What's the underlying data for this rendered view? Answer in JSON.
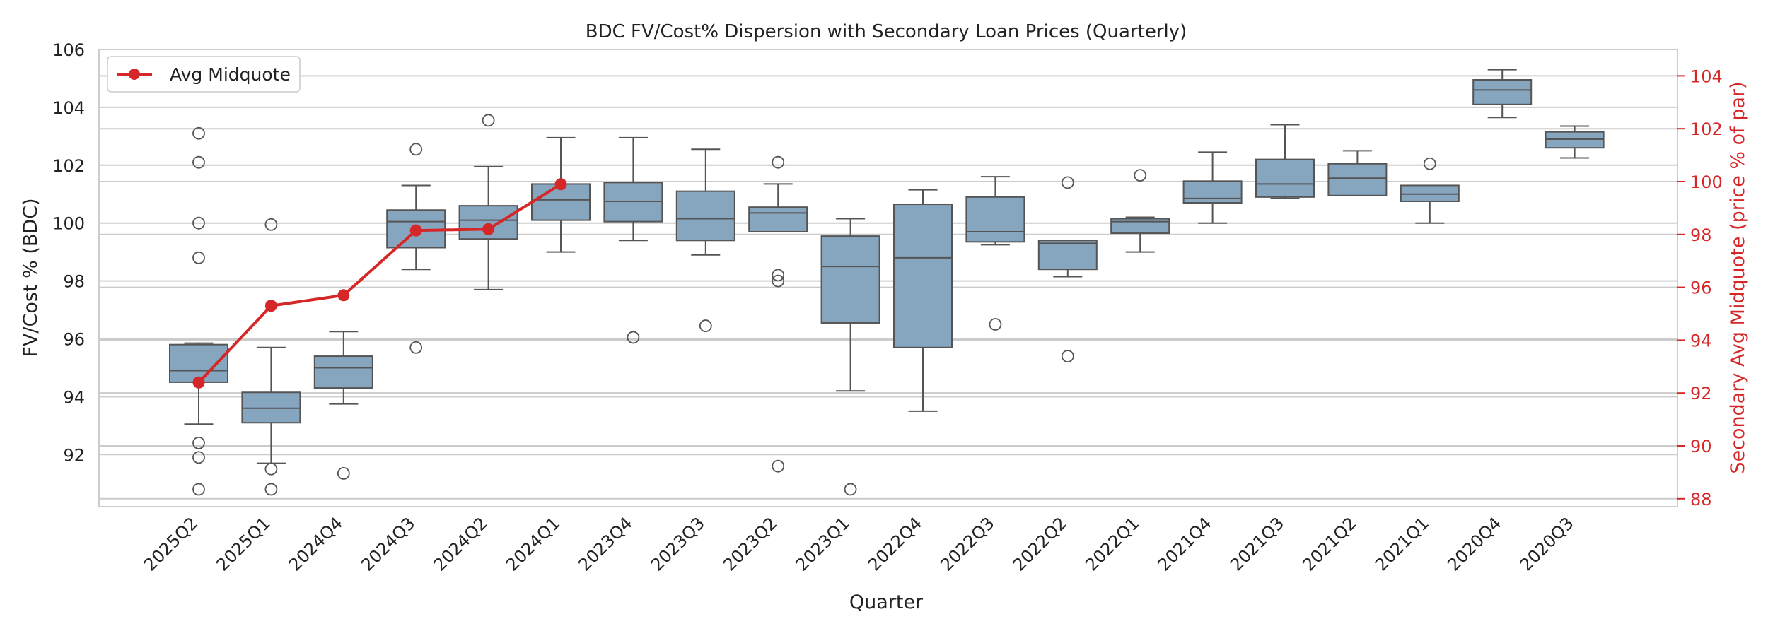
{
  "chart_data": {
    "type": "box",
    "title": "BDC FV/Cost% Dispersion with Secondary Loan Prices (Quarterly)",
    "xlabel": "Quarter",
    "ylabel": "FV/Cost % (BDC)",
    "ylabel_right": "Secondary Avg Midquote (price % of par)",
    "ylim": [
      90.2,
      106.0
    ],
    "ylim_right": [
      87.7,
      105.0
    ],
    "yticks": [
      92,
      94,
      96,
      98,
      100,
      102,
      104,
      106
    ],
    "yticks_right": [
      88,
      90,
      92,
      94,
      96,
      98,
      100,
      102,
      104
    ],
    "grid": true,
    "legend_position": "top-left",
    "legend": [
      "Avg Midquote"
    ],
    "colors": {
      "box": "#86a5be",
      "box_edge": "#555555",
      "line": "#d62728",
      "right_axis": "#d62728",
      "grid": "#cccccc"
    },
    "categories": [
      "2025Q2",
      "2025Q1",
      "2024Q4",
      "2024Q3",
      "2024Q2",
      "2024Q1",
      "2023Q4",
      "2023Q3",
      "2023Q2",
      "2023Q1",
      "2022Q4",
      "2022Q3",
      "2022Q2",
      "2022Q1",
      "2021Q4",
      "2021Q3",
      "2021Q2",
      "2021Q1",
      "2020Q4",
      "2020Q3"
    ],
    "boxes": [
      {
        "whislo": 93.05,
        "q1": 94.5,
        "med": 94.9,
        "q3": 95.8,
        "whishi": 95.85,
        "fliers": [
          103.1,
          102.1,
          100.0,
          98.8,
          92.4,
          91.9,
          90.8
        ]
      },
      {
        "whislo": 91.7,
        "q1": 93.1,
        "med": 93.6,
        "q3": 94.15,
        "whishi": 95.7,
        "fliers": [
          99.95,
          91.5,
          90.8
        ]
      },
      {
        "whislo": 93.75,
        "q1": 94.3,
        "med": 95.0,
        "q3": 95.4,
        "whishi": 96.25,
        "fliers": [
          91.35
        ]
      },
      {
        "whislo": 98.4,
        "q1": 99.15,
        "med": 100.05,
        "q3": 100.45,
        "whishi": 101.3,
        "fliers": [
          102.55,
          95.7
        ]
      },
      {
        "whislo": 97.7,
        "q1": 99.45,
        "med": 100.1,
        "q3": 100.6,
        "whishi": 101.95,
        "fliers": [
          103.55
        ]
      },
      {
        "whislo": 99.0,
        "q1": 100.1,
        "med": 100.8,
        "q3": 101.35,
        "whishi": 102.95,
        "fliers": []
      },
      {
        "whislo": 99.4,
        "q1": 100.05,
        "med": 100.75,
        "q3": 101.4,
        "whishi": 102.95,
        "fliers": [
          96.05
        ]
      },
      {
        "whislo": 98.9,
        "q1": 99.4,
        "med": 100.15,
        "q3": 101.1,
        "whishi": 102.55,
        "fliers": [
          96.45
        ]
      },
      {
        "whislo": 99.7,
        "q1": 99.7,
        "med": 100.35,
        "q3": 100.55,
        "whishi": 101.35,
        "fliers": [
          102.1,
          98.2,
          98.0,
          91.6
        ]
      },
      {
        "whislo": 94.2,
        "q1": 96.55,
        "med": 98.5,
        "q3": 99.55,
        "whishi": 100.15,
        "fliers": [
          90.8
        ]
      },
      {
        "whislo": 93.5,
        "q1": 95.7,
        "med": 98.8,
        "q3": 100.65,
        "whishi": 101.15,
        "fliers": []
      },
      {
        "whislo": 99.25,
        "q1": 99.35,
        "med": 99.7,
        "q3": 100.9,
        "whishi": 101.6,
        "fliers": [
          96.5
        ]
      },
      {
        "whislo": 98.15,
        "q1": 98.4,
        "med": 99.3,
        "q3": 99.4,
        "whishi": 99.4,
        "fliers": [
          101.4,
          95.4
        ]
      },
      {
        "whislo": 99.0,
        "q1": 99.65,
        "med": 100.05,
        "q3": 100.15,
        "whishi": 100.2,
        "fliers": [
          101.65
        ]
      },
      {
        "whislo": 100.0,
        "q1": 100.7,
        "med": 100.85,
        "q3": 101.45,
        "whishi": 102.45,
        "fliers": []
      },
      {
        "whislo": 100.85,
        "q1": 100.9,
        "med": 101.35,
        "q3": 102.2,
        "whishi": 103.4,
        "fliers": []
      },
      {
        "whislo": 100.95,
        "q1": 100.95,
        "med": 101.55,
        "q3": 102.05,
        "whishi": 102.5,
        "fliers": []
      },
      {
        "whislo": 100.0,
        "q1": 100.75,
        "med": 101.0,
        "q3": 101.3,
        "whishi": 101.3,
        "fliers": [
          102.05
        ]
      },
      {
        "whislo": 103.65,
        "q1": 104.1,
        "med": 104.6,
        "q3": 104.95,
        "whishi": 105.3,
        "fliers": []
      },
      {
        "whislo": 102.25,
        "q1": 102.6,
        "med": 102.9,
        "q3": 103.15,
        "whishi": 103.35,
        "fliers": []
      }
    ],
    "series": [
      {
        "name": "Avg Midquote",
        "axis": "right",
        "values": [
          92.4,
          95.3,
          95.7,
          98.15,
          98.2,
          99.9,
          null,
          null,
          null,
          null,
          null,
          null,
          null,
          null,
          null,
          null,
          null,
          null,
          null,
          null
        ]
      }
    ]
  }
}
